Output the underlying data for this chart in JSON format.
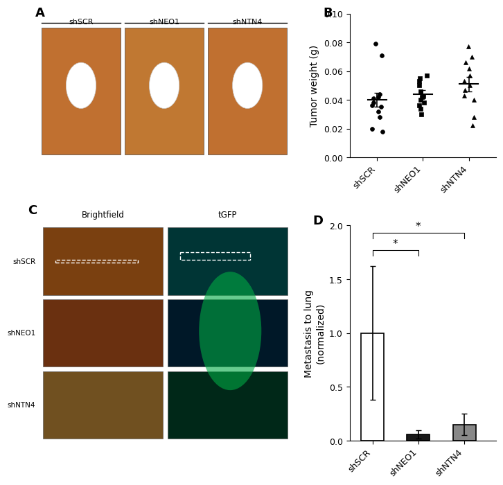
{
  "panel_B": {
    "groups": [
      "shSCR",
      "shNEO1",
      "shNTN4"
    ],
    "shSCR_data": [
      0.079,
      0.071,
      0.044,
      0.042,
      0.041,
      0.038,
      0.036,
      0.035,
      0.032,
      0.028,
      0.02,
      0.018
    ],
    "shNEO1_data": [
      0.057,
      0.055,
      0.053,
      0.05,
      0.046,
      0.043,
      0.042,
      0.04,
      0.038,
      0.036,
      0.034,
      0.03
    ],
    "shNTN4_data": [
      0.077,
      0.07,
      0.066,
      0.062,
      0.057,
      0.053,
      0.05,
      0.047,
      0.043,
      0.04,
      0.028,
      0.022
    ],
    "shSCR_mean": 0.04,
    "shNEO1_mean": 0.044,
    "shNTN4_mean": 0.051,
    "shSCR_sem": 0.005,
    "shNEO1_sem": 0.003,
    "shNTN4_sem": 0.005,
    "ylabel": "Tumor weight (g)",
    "ylim": [
      0.0,
      0.1
    ],
    "yticks": [
      0.0,
      0.02,
      0.04,
      0.06,
      0.08,
      0.1
    ]
  },
  "panel_D": {
    "groups": [
      "shSCR",
      "shNEO1",
      "shNTN4"
    ],
    "values": [
      1.0,
      0.06,
      0.15
    ],
    "errors": [
      0.62,
      0.04,
      0.1
    ],
    "bar_colors": [
      "#ffffff",
      "#1a1a1a",
      "#888888"
    ],
    "bar_edgecolor": "#000000",
    "ylabel": "Metastasis to lung\n(normalized)",
    "ylim": [
      0.0,
      2.0
    ],
    "yticks": [
      0.0,
      0.5,
      1.0,
      1.5,
      2.0
    ]
  },
  "panel_A": {
    "labels": [
      "shSCR",
      "shNEO1",
      "shNTN4"
    ]
  },
  "panel_C": {
    "row_labels": [
      "shSCR",
      "shNEO1",
      "shNTN4"
    ],
    "col_labels": [
      "Brightfield",
      "tGFP"
    ]
  },
  "background_color": "#ffffff",
  "label_fontsize": 11,
  "tick_fontsize": 9,
  "panel_label_fontsize": 13
}
